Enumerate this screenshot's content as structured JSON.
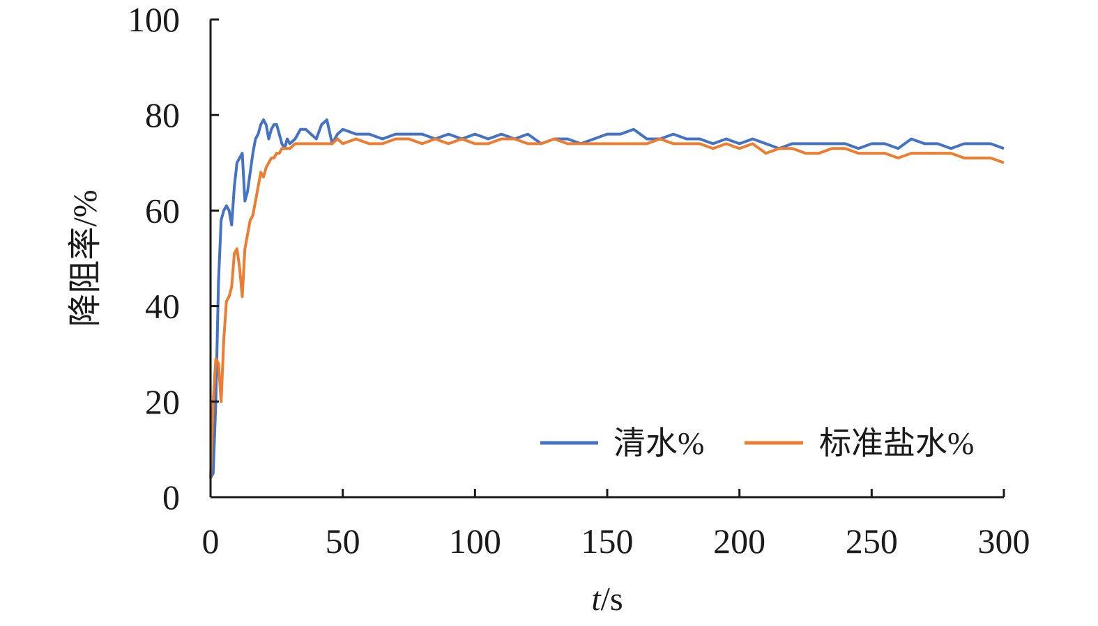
{
  "chart_data": {
    "type": "line",
    "xlabel_italic": "t",
    "xlabel_unit": "/s",
    "ylabel": "降阻率/%",
    "xlim": [
      0,
      300
    ],
    "ylim": [
      0,
      100
    ],
    "x_ticks": [
      0,
      50,
      100,
      150,
      200,
      250,
      300
    ],
    "y_ticks": [
      0,
      20,
      40,
      60,
      80,
      100
    ],
    "grid": false,
    "legend_position": "bottom-right",
    "series": [
      {
        "name": "清水%",
        "color": "#4472C4",
        "x": [
          0,
          1,
          2,
          3,
          4,
          5,
          6,
          7,
          8,
          9,
          10,
          11,
          12,
          13,
          14,
          15,
          16,
          17,
          18,
          19,
          20,
          21,
          22,
          23,
          24,
          25,
          26,
          27,
          28,
          29,
          30,
          32,
          34,
          36,
          38,
          40,
          42,
          44,
          46,
          48,
          50,
          55,
          60,
          65,
          70,
          75,
          80,
          85,
          90,
          95,
          100,
          105,
          110,
          115,
          120,
          125,
          130,
          135,
          140,
          145,
          150,
          155,
          160,
          165,
          170,
          175,
          180,
          185,
          190,
          195,
          200,
          205,
          210,
          215,
          220,
          225,
          230,
          235,
          240,
          245,
          250,
          255,
          260,
          265,
          270,
          275,
          280,
          285,
          290,
          295,
          300
        ],
        "y": [
          4,
          5,
          20,
          45,
          58,
          60,
          61,
          60,
          57,
          65,
          70,
          71,
          72,
          62,
          64,
          68,
          72,
          75,
          76,
          78,
          79,
          78,
          75,
          77,
          78,
          78,
          76,
          74,
          73,
          75,
          74,
          75,
          77,
          77,
          76,
          75,
          78,
          79,
          74,
          76,
          77,
          76,
          76,
          75,
          76,
          76,
          76,
          75,
          76,
          75,
          76,
          75,
          76,
          75,
          76,
          74,
          75,
          75,
          74,
          75,
          76,
          76,
          77,
          75,
          75,
          76,
          75,
          75,
          74,
          75,
          74,
          75,
          74,
          73,
          74,
          74,
          74,
          74,
          74,
          73,
          74,
          74,
          73,
          75,
          74,
          74,
          73,
          74,
          74,
          74,
          73
        ]
      },
      {
        "name": "标准盐水%",
        "color": "#ED7D31",
        "x": [
          0,
          1,
          2,
          3,
          4,
          5,
          6,
          7,
          8,
          9,
          10,
          11,
          12,
          13,
          14,
          15,
          16,
          17,
          18,
          19,
          20,
          21,
          22,
          23,
          24,
          25,
          26,
          27,
          28,
          29,
          30,
          32,
          34,
          36,
          38,
          40,
          42,
          44,
          46,
          48,
          50,
          55,
          60,
          65,
          70,
          75,
          80,
          85,
          90,
          95,
          100,
          105,
          110,
          115,
          120,
          125,
          130,
          135,
          140,
          145,
          150,
          155,
          160,
          165,
          170,
          175,
          180,
          185,
          190,
          195,
          200,
          205,
          210,
          215,
          220,
          225,
          230,
          235,
          240,
          245,
          250,
          255,
          260,
          265,
          270,
          275,
          280,
          285,
          290,
          295,
          300
        ],
        "y": [
          4,
          20,
          29,
          28,
          20,
          33,
          41,
          42,
          44,
          51,
          52,
          48,
          42,
          52,
          55,
          58,
          59,
          62,
          65,
          68,
          67,
          69,
          70,
          71,
          71,
          72,
          72,
          73,
          73,
          73,
          73,
          74,
          74,
          74,
          74,
          74,
          74,
          74,
          74,
          75,
          74,
          75,
          74,
          74,
          75,
          75,
          74,
          75,
          74,
          75,
          74,
          74,
          75,
          75,
          74,
          74,
          75,
          74,
          74,
          74,
          74,
          74,
          74,
          74,
          75,
          74,
          74,
          74,
          73,
          74,
          73,
          74,
          72,
          73,
          73,
          72,
          72,
          73,
          73,
          72,
          72,
          72,
          71,
          72,
          72,
          72,
          72,
          71,
          71,
          71,
          70
        ]
      }
    ]
  }
}
